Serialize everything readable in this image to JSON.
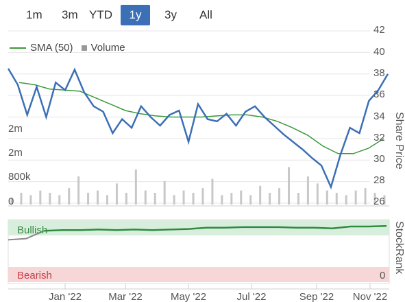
{
  "tabs": [
    {
      "label": "1m",
      "active": false
    },
    {
      "label": "3m",
      "active": false
    },
    {
      "label": "YTD",
      "active": false
    },
    {
      "label": "1y",
      "active": true
    },
    {
      "label": "3y",
      "active": false
    },
    {
      "label": "All",
      "active": false
    }
  ],
  "legend": {
    "sma": "SMA (50)",
    "volume": "Volume"
  },
  "axes": {
    "price_title": "Share Price",
    "rank_title": "StockRank",
    "price_ticks": [
      "42",
      "40",
      "38",
      "36",
      "34",
      "32",
      "30",
      "28",
      "26"
    ],
    "volume_ticks": [
      "2m",
      "2m",
      "800k",
      "0"
    ],
    "rank_ticks": [
      "0"
    ],
    "x_ticks": [
      "Jan '22",
      "Mar '22",
      "May '22",
      "Jul '22",
      "Sep '22",
      "Nov '22"
    ]
  },
  "rank_bands": {
    "top": "Bullish",
    "bottom": "Bearish"
  },
  "colors": {
    "price": "#3b6fb6",
    "sma": "#3a9a3a",
    "volume": "#c8c8c8",
    "bullish_band": "#d8eedd",
    "bearish_band": "#f6d6d6",
    "rank_line": "#2f8a3f",
    "rank_pre": "#8a8a8a",
    "active_tab": "#3b6fb6"
  },
  "chart_data": [
    {
      "type": "line",
      "title": "",
      "ylabel": "Share Price",
      "ylim": [
        26,
        42
      ],
      "x_ticks": [
        "Jan '22",
        "Mar '22",
        "May '22",
        "Jul '22",
        "Sep '22",
        "Nov '22"
      ],
      "series": [
        {
          "name": "SMA (50)",
          "values": [
            37.2,
            37.0,
            36.6,
            36.5,
            36.4,
            35.8,
            35.2,
            34.6,
            34.3,
            34.1,
            34.0,
            34.0,
            34.0,
            34.1,
            34.2,
            34.2,
            34.0,
            33.6,
            33.0,
            32.3,
            31.3,
            30.6,
            30.6,
            31.1,
            32.0
          ]
        },
        {
          "name": "Price",
          "values": [
            38.5,
            37.0,
            34.2,
            36.8,
            34.0,
            37.2,
            36.5,
            38.4,
            36.3,
            35.0,
            34.5,
            32.5,
            33.8,
            33.0,
            35.0,
            34.0,
            33.2,
            34.2,
            34.6,
            31.7,
            35.2,
            33.8,
            33.6,
            34.3,
            33.2,
            34.5,
            35.0,
            34.0,
            33.2,
            32.4,
            31.7,
            31.0,
            30.2,
            29.5,
            27.5,
            30.5,
            33.0,
            32.5,
            35.5,
            36.5,
            38.0
          ]
        },
        {
          "name": "Volume",
          "values": [
            0.3,
            0.5,
            0.4,
            0.6,
            0.5,
            0.4,
            0.7,
            1.2,
            0.5,
            0.6,
            0.4,
            0.9,
            0.5,
            1.5,
            0.6,
            0.5,
            1.0,
            0.4,
            0.6,
            0.5,
            0.7,
            1.1,
            0.4,
            0.5,
            0.6,
            0.4,
            0.8,
            0.5,
            0.7,
            1.6,
            0.5,
            1.2,
            0.9,
            0.6,
            0.5,
            0.4,
            0.6,
            0.7,
            0.5,
            0.4
          ]
        }
      ]
    },
    {
      "type": "line",
      "title": "",
      "ylabel": "StockRank",
      "series": [
        {
          "name": "StockRank",
          "values": [
            70,
            72,
            85,
            86,
            86,
            87,
            86,
            87,
            86,
            87,
            88,
            90,
            90,
            91,
            91,
            91,
            90,
            90,
            89,
            92,
            92,
            93
          ]
        }
      ]
    }
  ]
}
